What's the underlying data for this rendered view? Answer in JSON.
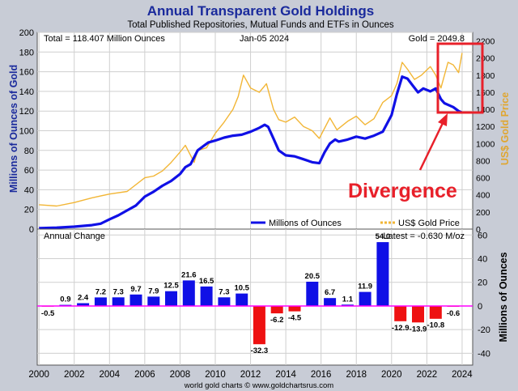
{
  "colors": {
    "background": "#c8ccd6",
    "plot_background": "#ffffff",
    "title": "#1a2a9c",
    "holdings_line": "#1010e6",
    "gold_line": "#f2b636",
    "bar_positive": "#1010e6",
    "bar_negative": "#ee1111",
    "zero_line": "#ff00ff",
    "annotation": "#e8202a",
    "right_axis_label": "#e0a630",
    "text": "#000000"
  },
  "chart_data": [
    {
      "type": "line",
      "title": "Annual Transparent Gold Holdings",
      "subtitle": "Total Published Repositories, Mutual Funds and ETFs in Ounces",
      "info_left": "Total = 118.407 Million Ounces",
      "info_date": "Jan-05  2024",
      "info_right": "Gold = 2049.8",
      "ylabel": "Millions of Ounces of Gold",
      "ylabel_right": "US$ Gold Price",
      "ylim": [
        0,
        200
      ],
      "ylim_right": [
        0,
        2300
      ],
      "yticks": [
        "0",
        "20",
        "40",
        "60",
        "80",
        "100",
        "120",
        "140",
        "160",
        "180",
        "200"
      ],
      "yticks_right": [
        "0",
        "200",
        "400",
        "600",
        "800",
        "1000",
        "1200",
        "1400",
        "1600",
        "1800",
        "2000",
        "2200"
      ],
      "grid": true,
      "legend": {
        "holdings": "Millions of Ounces",
        "gold": "US$ Gold Price"
      },
      "annotation": "Divergence",
      "series": [
        {
          "name": "Millions of Ounces",
          "x": [
            2000,
            2001,
            2002,
            2003,
            2003.5,
            2004,
            2004.5,
            2005,
            2005.5,
            2006,
            2006.5,
            2007,
            2007.5,
            2008,
            2008.3,
            2008.6,
            2009,
            2009.3,
            2009.6,
            2010,
            2010.5,
            2011,
            2011.5,
            2012,
            2012.5,
            2012.8,
            2013,
            2013.3,
            2013.6,
            2014,
            2014.5,
            2015,
            2015.5,
            2015.9,
            2016.2,
            2016.5,
            2016.8,
            2017,
            2017.5,
            2018,
            2018.5,
            2019,
            2019.5,
            2020,
            2020.3,
            2020.6,
            2020.9,
            2021.2,
            2021.5,
            2021.8,
            2022.2,
            2022.5,
            2022.8,
            2023,
            2023.5,
            2023.8,
            2024
          ],
          "y": [
            1,
            1.5,
            2.5,
            4,
            5.5,
            10,
            14,
            19,
            24,
            33,
            38,
            44,
            49,
            56,
            63,
            66,
            80,
            84,
            88,
            90,
            93,
            95,
            96,
            99,
            103,
            106,
            104,
            92,
            80,
            75,
            74,
            71,
            68,
            67,
            78,
            87,
            91,
            89,
            91,
            94,
            92,
            95,
            99,
            116,
            137,
            155,
            153,
            146,
            139,
            143,
            140,
            143,
            132,
            128,
            124,
            120,
            118.4
          ]
        },
        {
          "name": "US$ Gold Price",
          "x": [
            2000,
            2001,
            2002,
            2003,
            2004,
            2005,
            2006,
            2006.5,
            2007,
            2007.5,
            2008,
            2008.3,
            2008.8,
            2009,
            2009.5,
            2010,
            2010.5,
            2011,
            2011.3,
            2011.6,
            2012,
            2012.5,
            2012.9,
            2013.3,
            2013.6,
            2014,
            2014.5,
            2015,
            2015.5,
            2015.9,
            2016.5,
            2016.9,
            2017.5,
            2018,
            2018.5,
            2019,
            2019.5,
            2020,
            2020.3,
            2020.6,
            2020.9,
            2021.3,
            2021.7,
            2022.2,
            2022.5,
            2022.8,
            2023.2,
            2023.5,
            2023.8,
            2024
          ],
          "y": [
            285,
            270,
            310,
            365,
            410,
            440,
            600,
            620,
            680,
            780,
            900,
            980,
            780,
            920,
            950,
            1120,
            1250,
            1400,
            1550,
            1800,
            1650,
            1600,
            1700,
            1400,
            1280,
            1250,
            1310,
            1200,
            1150,
            1060,
            1300,
            1160,
            1260,
            1320,
            1220,
            1290,
            1480,
            1560,
            1700,
            1950,
            1870,
            1750,
            1800,
            1900,
            1800,
            1650,
            1950,
            1920,
            1830,
            2060
          ]
        }
      ]
    },
    {
      "type": "bar",
      "title": "Annual Change",
      "info_right": "Latest = -0.630 M/oz",
      "ylabel": "Millions of Ounces",
      "ylim": [
        -50,
        65
      ],
      "yticks": [
        "-40",
        "-20",
        "0",
        "20",
        "40",
        "60"
      ],
      "xticks": [
        "2000",
        "2002",
        "2004",
        "2006",
        "2008",
        "2010",
        "2012",
        "2014",
        "2016",
        "2018",
        "2020",
        "2022",
        "2024"
      ],
      "xlim": [
        1999.9,
        2024.6
      ],
      "categories": [
        "2001",
        "2002",
        "2003",
        "2004",
        "2005",
        "2006",
        "2007",
        "2008",
        "2009",
        "2010",
        "2011",
        "2012",
        "2013",
        "2014",
        "2015",
        "2016",
        "2017",
        "2018",
        "2019",
        "2020",
        "2021",
        "2022",
        "2023",
        "2024"
      ],
      "values": [
        -0.5,
        0.9,
        2.4,
        7.2,
        7.3,
        9.7,
        7.9,
        12.5,
        21.6,
        16.5,
        7.3,
        10.5,
        -32.3,
        -6.2,
        -4.5,
        20.5,
        6.7,
        1.1,
        11.9,
        54.0,
        -12.9,
        -13.9,
        -10.8,
        -0.6
      ],
      "labels": [
        "-0.5",
        "0.9",
        "2.4",
        "7.2",
        "7.3",
        "9.7",
        "7.9",
        "12.5",
        "21.6",
        "16.5",
        "7.3",
        "10.5",
        "-32.3",
        "-6.2",
        "-4.5",
        "20.5",
        "6.7",
        "1.1",
        "11.9",
        "54.0",
        "-12.9",
        "-13.9",
        "-10.8",
        "-0.6"
      ],
      "grid": true
    }
  ],
  "footer": "world gold charts © www.goldchartsrus.com"
}
